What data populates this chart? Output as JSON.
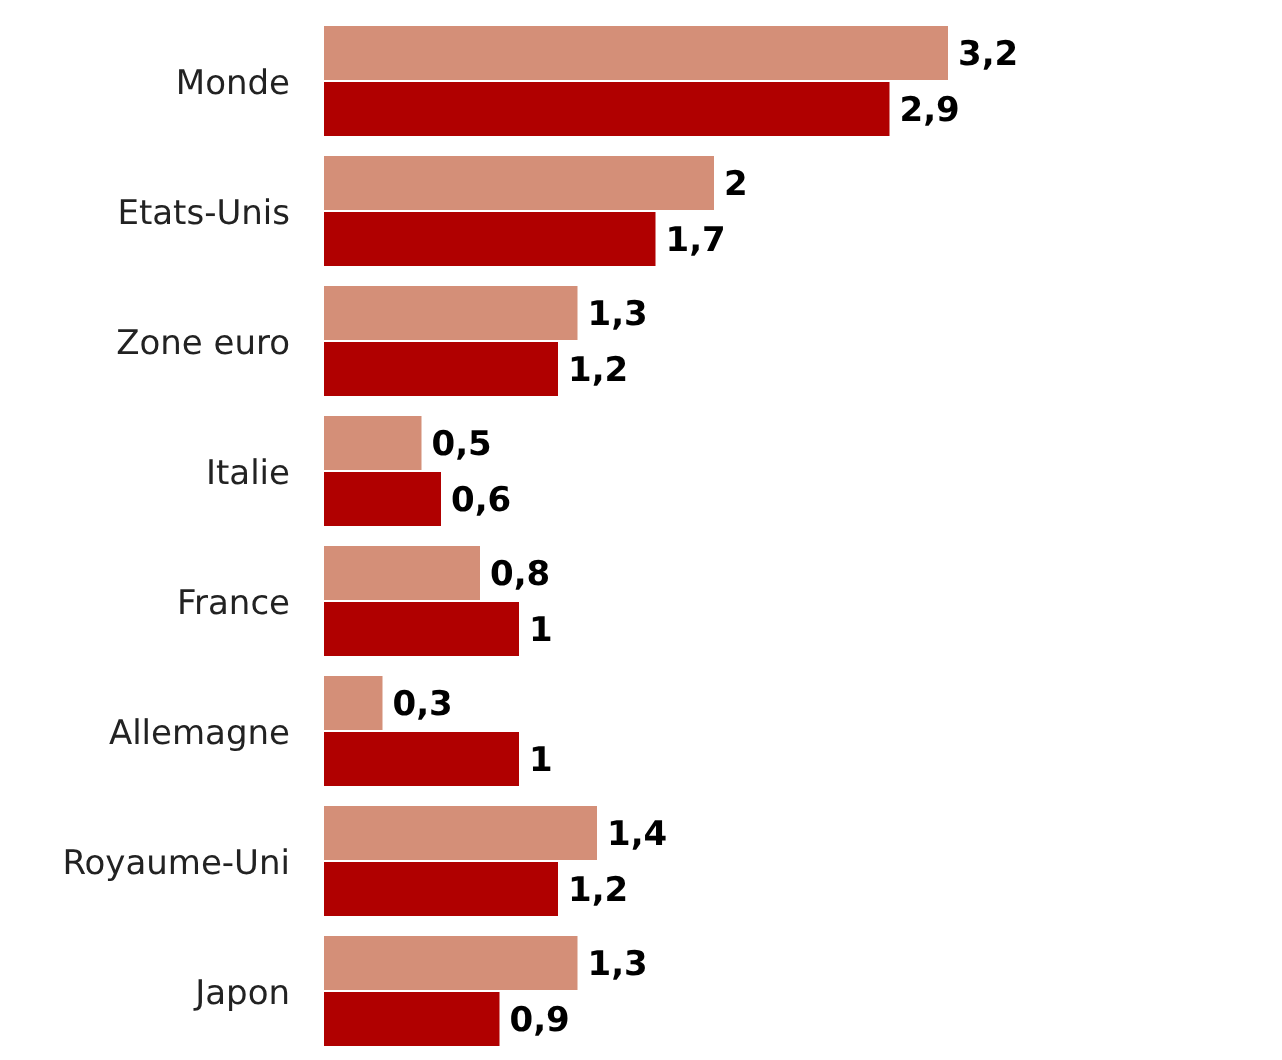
{
  "chart_data": {
    "type": "bar",
    "orientation": "horizontal",
    "categories": [
      "Monde",
      "Etats-Unis",
      "Zone euro",
      "Italie",
      "France",
      "Allemagne",
      "Royaume-Uni",
      "Japon"
    ],
    "series": [
      {
        "color": "#d48f78",
        "values": [
          3.2,
          2,
          1.3,
          0.5,
          0.8,
          0.3,
          1.4,
          1.3
        ],
        "value_labels": [
          "3,2",
          "2",
          "1,3",
          "0,5",
          "0,8",
          "0,3",
          "1,4",
          "1,3"
        ]
      },
      {
        "color": "#b00000",
        "values": [
          2.9,
          1.7,
          1.2,
          0.6,
          1,
          1,
          1.2,
          0.9
        ],
        "value_labels": [
          "2,9",
          "1,7",
          "1,2",
          "0,6",
          "1",
          "1",
          "1,2",
          "0,9"
        ]
      }
    ]
  }
}
